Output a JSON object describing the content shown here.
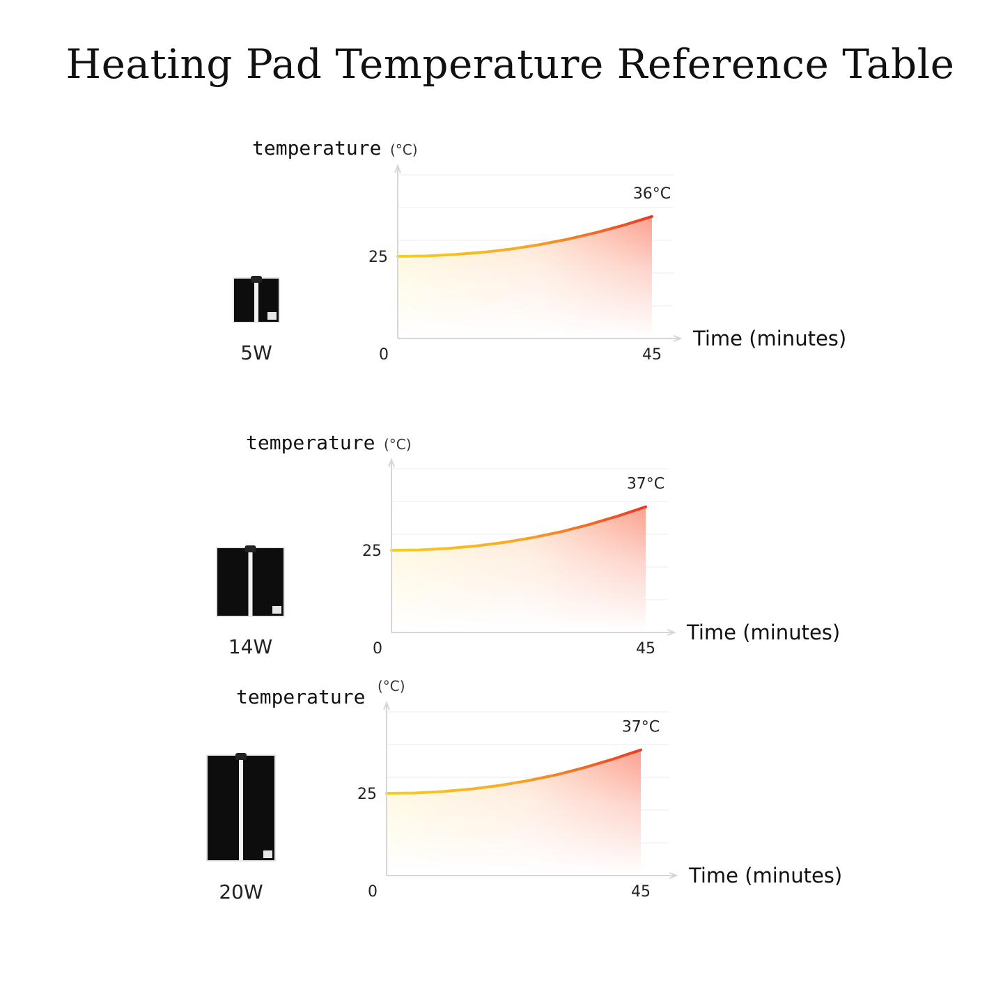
{
  "title": "Heating Pad Temperature Reference Table",
  "chart_data": [
    {
      "type": "line",
      "pad_label": "5W",
      "ylabel": "temperature",
      "yunit": "(°C)",
      "xlabel": "Time (minutes)",
      "x_ticks": [
        "0",
        "45"
      ],
      "y_ticks": [
        "25"
      ],
      "end_label": "36°C",
      "xlim": [
        0,
        45
      ],
      "ylim": [
        0,
        45
      ],
      "x": [
        0,
        5,
        10,
        15,
        20,
        25,
        30,
        35,
        40,
        45
      ],
      "values": [
        25,
        25.1,
        25.5,
        26.1,
        27.0,
        28.2,
        29.7,
        31.5,
        33.6,
        36
      ]
    },
    {
      "type": "line",
      "pad_label": "14W",
      "ylabel": "temperature",
      "yunit": "(°C)",
      "xlabel": "Time (minutes)",
      "x_ticks": [
        "0",
        "45"
      ],
      "y_ticks": [
        "25"
      ],
      "end_label": "37°C",
      "xlim": [
        0,
        45
      ],
      "ylim": [
        0,
        45
      ],
      "x": [
        0,
        5,
        10,
        15,
        20,
        25,
        30,
        35,
        40,
        45
      ],
      "values": [
        25,
        25.1,
        25.5,
        26.2,
        27.2,
        28.5,
        30.1,
        32.1,
        34.4,
        37
      ]
    },
    {
      "type": "line",
      "pad_label": "20W",
      "ylabel": "temperature",
      "yunit": "(°C)",
      "xlabel": "Time (minutes)",
      "x_ticks": [
        "0",
        "45"
      ],
      "y_ticks": [
        "25"
      ],
      "end_label": "37°C",
      "xlim": [
        0,
        45
      ],
      "ylim": [
        0,
        45
      ],
      "x": [
        0,
        5,
        10,
        15,
        20,
        25,
        30,
        35,
        40,
        45
      ],
      "values": [
        25,
        25.1,
        25.5,
        26.2,
        27.2,
        28.5,
        30.1,
        32.1,
        34.4,
        37
      ]
    }
  ],
  "colors": {
    "curve_start": "#f2d21c",
    "curve_mid": "#f59a2a",
    "curve_end": "#ea3a22",
    "axis": "#d6d6d6",
    "grid": "#f2f2f2",
    "pad": "#0d0d0d"
  }
}
